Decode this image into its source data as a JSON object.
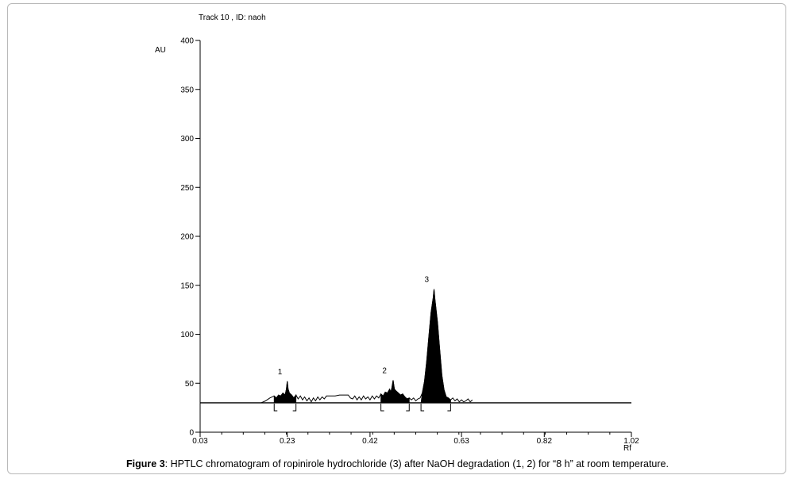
{
  "figure": {
    "caption_label": "Figure 3",
    "caption_text": ": HPTLC chromatogram of ropinirole hydrochloride (3) after NaOH degradation (1, 2) for “8 h” at room temperature."
  },
  "chart_data": {
    "type": "line",
    "title": "Track  10 , ID: naoh",
    "xlabel": "Rf",
    "ylabel": "AU",
    "xlim": [
      0.03,
      1.02
    ],
    "ylim": [
      0,
      400
    ],
    "x_ticks": [
      "0.03",
      "0.23",
      "0.42",
      "0.63",
      "0.82",
      "1.02"
    ],
    "y_ticks": [
      "0",
      "50",
      "100",
      "150",
      "200",
      "250",
      "300",
      "350",
      "400"
    ],
    "baseline": 30,
    "series": [
      {
        "values": [
          [
            0.17,
            30
          ],
          [
            0.18,
            32
          ],
          [
            0.19,
            35
          ],
          [
            0.2,
            37
          ],
          [
            0.205,
            35
          ],
          [
            0.21,
            38
          ],
          [
            0.215,
            37
          ],
          [
            0.22,
            40
          ],
          [
            0.225,
            38
          ],
          [
            0.228,
            44
          ],
          [
            0.23,
            52
          ],
          [
            0.232,
            44
          ],
          [
            0.235,
            40
          ],
          [
            0.24,
            38
          ],
          [
            0.245,
            35
          ],
          [
            0.25,
            38
          ],
          [
            0.255,
            34
          ],
          [
            0.26,
            37
          ],
          [
            0.265,
            33
          ],
          [
            0.27,
            36
          ],
          [
            0.275,
            32
          ],
          [
            0.28,
            35
          ],
          [
            0.285,
            31
          ],
          [
            0.29,
            35
          ],
          [
            0.295,
            32
          ],
          [
            0.3,
            36
          ],
          [
            0.305,
            33
          ],
          [
            0.31,
            36
          ],
          [
            0.315,
            34
          ],
          [
            0.32,
            37
          ],
          [
            0.33,
            37
          ],
          [
            0.34,
            37
          ],
          [
            0.35,
            38
          ],
          [
            0.36,
            38
          ],
          [
            0.37,
            38
          ],
          [
            0.375,
            35
          ],
          [
            0.38,
            34
          ],
          [
            0.385,
            37
          ],
          [
            0.39,
            33
          ],
          [
            0.395,
            36
          ],
          [
            0.4,
            33
          ],
          [
            0.405,
            37
          ],
          [
            0.41,
            34
          ],
          [
            0.415,
            36
          ],
          [
            0.42,
            33
          ],
          [
            0.425,
            37
          ],
          [
            0.43,
            34
          ],
          [
            0.435,
            37
          ],
          [
            0.44,
            35
          ],
          [
            0.445,
            39
          ],
          [
            0.45,
            37
          ],
          [
            0.455,
            41
          ],
          [
            0.46,
            40
          ],
          [
            0.465,
            44
          ],
          [
            0.468,
            41
          ],
          [
            0.47,
            45
          ],
          [
            0.473,
            53
          ],
          [
            0.476,
            44
          ],
          [
            0.48,
            42
          ],
          [
            0.485,
            40
          ],
          [
            0.49,
            38
          ],
          [
            0.495,
            39
          ],
          [
            0.5,
            36
          ],
          [
            0.505,
            34
          ],
          [
            0.51,
            35
          ],
          [
            0.515,
            33
          ],
          [
            0.52,
            35
          ],
          [
            0.525,
            32
          ],
          [
            0.53,
            34
          ],
          [
            0.535,
            35
          ],
          [
            0.54,
            40
          ],
          [
            0.545,
            52
          ],
          [
            0.55,
            72
          ],
          [
            0.555,
            98
          ],
          [
            0.56,
            122
          ],
          [
            0.565,
            137
          ],
          [
            0.567,
            146
          ],
          [
            0.569,
            136
          ],
          [
            0.575,
            112
          ],
          [
            0.58,
            84
          ],
          [
            0.585,
            58
          ],
          [
            0.59,
            43
          ],
          [
            0.595,
            36
          ],
          [
            0.6,
            35
          ],
          [
            0.605,
            33
          ],
          [
            0.61,
            35
          ],
          [
            0.615,
            32
          ],
          [
            0.62,
            34
          ],
          [
            0.625,
            31
          ],
          [
            0.63,
            33
          ],
          [
            0.635,
            31
          ],
          [
            0.64,
            32
          ],
          [
            0.645,
            34
          ],
          [
            0.65,
            31
          ],
          [
            0.655,
            33
          ]
        ]
      }
    ],
    "peaks": [
      {
        "label": "1",
        "rf": 0.23,
        "height": 52,
        "start": 0.2,
        "end": 0.25
      },
      {
        "label": "2",
        "rf": 0.47,
        "height": 53,
        "start": 0.445,
        "end": 0.51
      },
      {
        "label": "3",
        "rf": 0.567,
        "height": 146,
        "start": 0.537,
        "end": 0.605
      }
    ]
  }
}
